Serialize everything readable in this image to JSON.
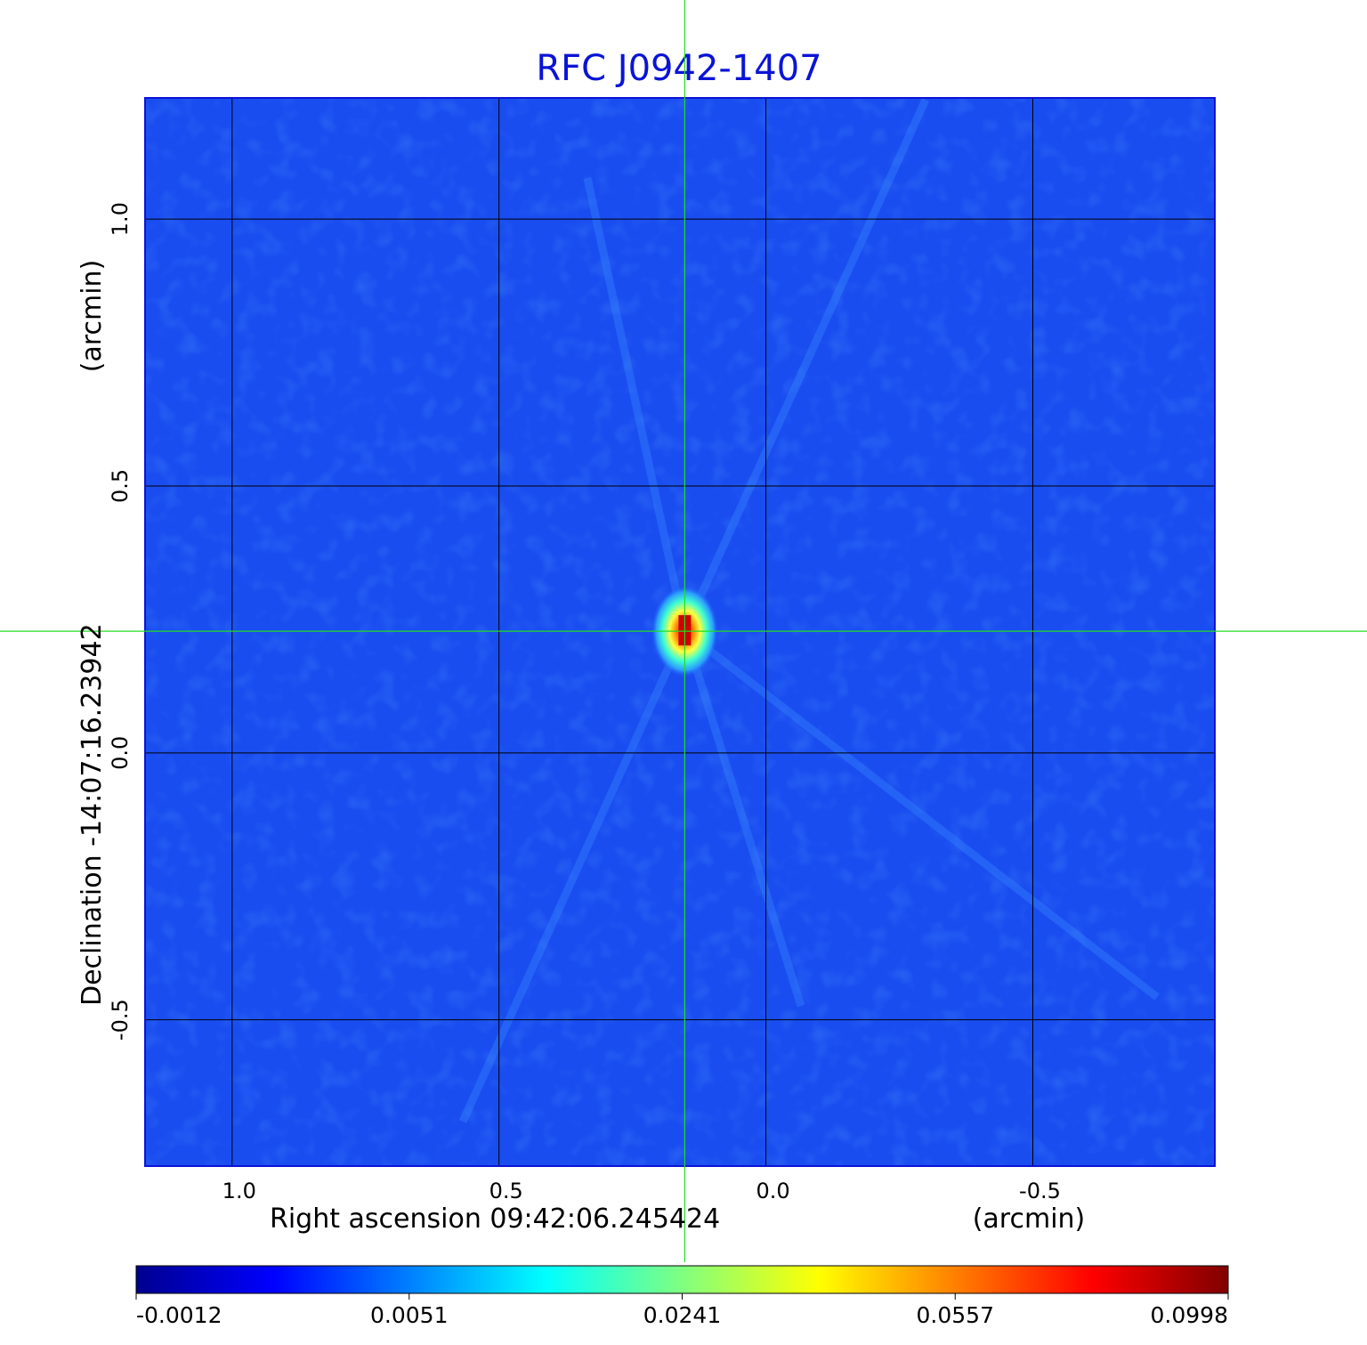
{
  "chart_data": {
    "type": "heatmap",
    "title": "RFC J0942-1407",
    "xlabel": "Right ascension  09:42:06.245424",
    "xunit": "(arcmin)",
    "ylabel": "Declination  -14:07:16.23942",
    "yunit": "(arcmin)",
    "x_ticks": [
      1.0,
      0.5,
      0.0,
      -0.5
    ],
    "x_tick_labels": [
      "1.0",
      "0.5",
      "0.0",
      "-0.5"
    ],
    "y_ticks": [
      1.0,
      0.5,
      0.0,
      -0.5
    ],
    "y_tick_labels": [
      "1.0",
      "0.5",
      "0.0",
      "-0.5"
    ],
    "xlim": [
      1.163,
      -0.841
    ],
    "ylim": [
      -0.774,
      1.227
    ],
    "grid": true,
    "crosshair": {
      "x": 0.152,
      "y": 0.228,
      "color": "#22dd22"
    },
    "peak": {
      "x": 0.152,
      "y": 0.228,
      "value": 0.0998
    },
    "colorbar": {
      "min": -0.0012,
      "max": 0.0998,
      "tick_labels": [
        "-0.0012",
        "0.0051",
        "0.0241",
        "0.0557",
        "0.0998"
      ],
      "colormap": "jet"
    },
    "colors": {
      "background_field": "#1a4df0",
      "title": "#0a14d6",
      "grid": "#000000"
    }
  }
}
